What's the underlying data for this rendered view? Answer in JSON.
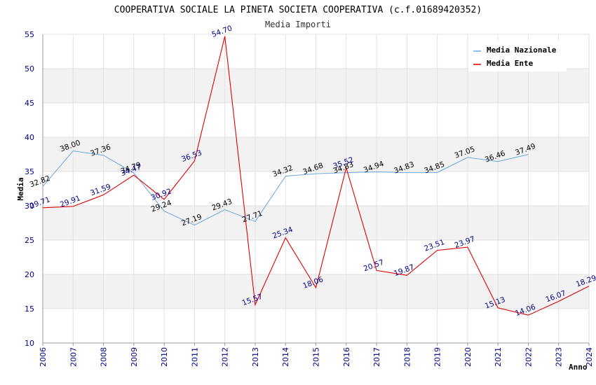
{
  "chart_data": {
    "type": "line",
    "title": "COOPERATIVA SOCIALE LA PINETA SOCIETA COOPERATIVA (c.f.01689420352)",
    "subtitle": "Media Importi",
    "xlabel": "Anno",
    "ylabel": "Media",
    "ylim": [
      10,
      55
    ],
    "yticks": [
      10,
      15,
      20,
      25,
      30,
      35,
      40,
      45,
      50,
      55
    ],
    "categories": [
      "2006",
      "2007",
      "2008",
      "2009",
      "2010",
      "2011",
      "2012",
      "2013",
      "2014",
      "2015",
      "2016",
      "2017",
      "2018",
      "2019",
      "2020",
      "2021",
      "2022",
      "2023",
      "2024"
    ],
    "legend_position": "top-right",
    "series": [
      {
        "name": "Media Nazionale",
        "color": "#6aa8e0",
        "label_color": "#000000",
        "values": [
          32.82,
          38.0,
          37.36,
          34.79,
          29.24,
          27.19,
          29.43,
          27.71,
          34.32,
          34.68,
          34.83,
          34.94,
          34.83,
          34.85,
          37.05,
          36.46,
          37.49,
          null,
          null
        ],
        "labels": [
          "32.82",
          "38.00",
          "37.36",
          "34.79",
          "29.24",
          "27.19",
          "29.43",
          "27.71",
          "34.32",
          "34.68",
          "34.83",
          "34.94",
          "34.83",
          "34.85",
          "37.05",
          "36.46",
          "37.49",
          null,
          null
        ]
      },
      {
        "name": "Media Ente",
        "color": "#e00000",
        "label_color": "#00008b",
        "values": [
          29.71,
          29.91,
          31.59,
          34.47,
          30.92,
          36.53,
          54.7,
          15.57,
          25.34,
          18.06,
          35.52,
          20.57,
          19.87,
          23.51,
          23.97,
          15.13,
          14.06,
          16.07,
          18.29
        ],
        "labels": [
          "29.71",
          "29.91",
          "31.59",
          "34.47",
          "30.92",
          "36.53",
          "54.70",
          "15.57",
          "25.34",
          "18.06",
          "35.52",
          "20.57",
          "19.87",
          "23.51",
          "23.97",
          "15.13",
          "14.06",
          "16.07",
          "18.29"
        ]
      }
    ]
  }
}
